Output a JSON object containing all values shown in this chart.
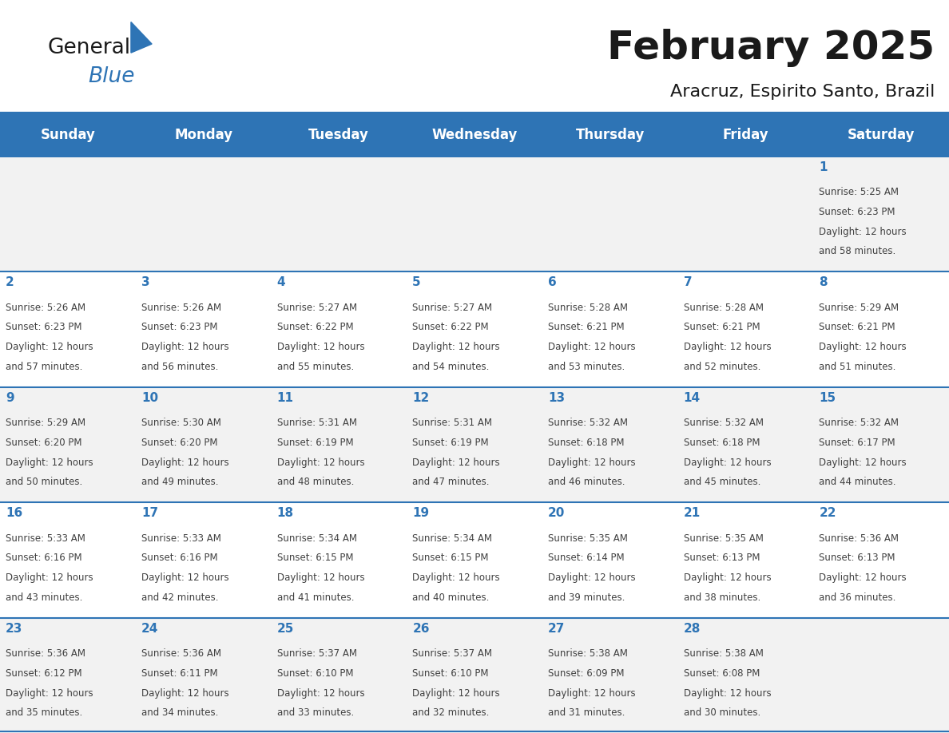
{
  "title": "February 2025",
  "subtitle": "Aracruz, Espirito Santo, Brazil",
  "header_bg": "#2E74B5",
  "header_text_color": "#FFFFFF",
  "cell_bg_even": "#F2F2F2",
  "cell_bg_odd": "#FFFFFF",
  "day_number_color": "#2E74B5",
  "info_text_color": "#404040",
  "days_of_week": [
    "Sunday",
    "Monday",
    "Tuesday",
    "Wednesday",
    "Thursday",
    "Friday",
    "Saturday"
  ],
  "calendar_data": [
    [
      null,
      null,
      null,
      null,
      null,
      null,
      1
    ],
    [
      2,
      3,
      4,
      5,
      6,
      7,
      8
    ],
    [
      9,
      10,
      11,
      12,
      13,
      14,
      15
    ],
    [
      16,
      17,
      18,
      19,
      20,
      21,
      22
    ],
    [
      23,
      24,
      25,
      26,
      27,
      28,
      null
    ]
  ],
  "sunrise_data": {
    "1": {
      "sunrise": "5:25 AM",
      "sunset": "6:23 PM",
      "daylight_hours": 12,
      "daylight_minutes": 58
    },
    "2": {
      "sunrise": "5:26 AM",
      "sunset": "6:23 PM",
      "daylight_hours": 12,
      "daylight_minutes": 57
    },
    "3": {
      "sunrise": "5:26 AM",
      "sunset": "6:23 PM",
      "daylight_hours": 12,
      "daylight_minutes": 56
    },
    "4": {
      "sunrise": "5:27 AM",
      "sunset": "6:22 PM",
      "daylight_hours": 12,
      "daylight_minutes": 55
    },
    "5": {
      "sunrise": "5:27 AM",
      "sunset": "6:22 PM",
      "daylight_hours": 12,
      "daylight_minutes": 54
    },
    "6": {
      "sunrise": "5:28 AM",
      "sunset": "6:21 PM",
      "daylight_hours": 12,
      "daylight_minutes": 53
    },
    "7": {
      "sunrise": "5:28 AM",
      "sunset": "6:21 PM",
      "daylight_hours": 12,
      "daylight_minutes": 52
    },
    "8": {
      "sunrise": "5:29 AM",
      "sunset": "6:21 PM",
      "daylight_hours": 12,
      "daylight_minutes": 51
    },
    "9": {
      "sunrise": "5:29 AM",
      "sunset": "6:20 PM",
      "daylight_hours": 12,
      "daylight_minutes": 50
    },
    "10": {
      "sunrise": "5:30 AM",
      "sunset": "6:20 PM",
      "daylight_hours": 12,
      "daylight_minutes": 49
    },
    "11": {
      "sunrise": "5:31 AM",
      "sunset": "6:19 PM",
      "daylight_hours": 12,
      "daylight_minutes": 48
    },
    "12": {
      "sunrise": "5:31 AM",
      "sunset": "6:19 PM",
      "daylight_hours": 12,
      "daylight_minutes": 47
    },
    "13": {
      "sunrise": "5:32 AM",
      "sunset": "6:18 PM",
      "daylight_hours": 12,
      "daylight_minutes": 46
    },
    "14": {
      "sunrise": "5:32 AM",
      "sunset": "6:18 PM",
      "daylight_hours": 12,
      "daylight_minutes": 45
    },
    "15": {
      "sunrise": "5:32 AM",
      "sunset": "6:17 PM",
      "daylight_hours": 12,
      "daylight_minutes": 44
    },
    "16": {
      "sunrise": "5:33 AM",
      "sunset": "6:16 PM",
      "daylight_hours": 12,
      "daylight_minutes": 43
    },
    "17": {
      "sunrise": "5:33 AM",
      "sunset": "6:16 PM",
      "daylight_hours": 12,
      "daylight_minutes": 42
    },
    "18": {
      "sunrise": "5:34 AM",
      "sunset": "6:15 PM",
      "daylight_hours": 12,
      "daylight_minutes": 41
    },
    "19": {
      "sunrise": "5:34 AM",
      "sunset": "6:15 PM",
      "daylight_hours": 12,
      "daylight_minutes": 40
    },
    "20": {
      "sunrise": "5:35 AM",
      "sunset": "6:14 PM",
      "daylight_hours": 12,
      "daylight_minutes": 39
    },
    "21": {
      "sunrise": "5:35 AM",
      "sunset": "6:13 PM",
      "daylight_hours": 12,
      "daylight_minutes": 38
    },
    "22": {
      "sunrise": "5:36 AM",
      "sunset": "6:13 PM",
      "daylight_hours": 12,
      "daylight_minutes": 36
    },
    "23": {
      "sunrise": "5:36 AM",
      "sunset": "6:12 PM",
      "daylight_hours": 12,
      "daylight_minutes": 35
    },
    "24": {
      "sunrise": "5:36 AM",
      "sunset": "6:11 PM",
      "daylight_hours": 12,
      "daylight_minutes": 34
    },
    "25": {
      "sunrise": "5:37 AM",
      "sunset": "6:10 PM",
      "daylight_hours": 12,
      "daylight_minutes": 33
    },
    "26": {
      "sunrise": "5:37 AM",
      "sunset": "6:10 PM",
      "daylight_hours": 12,
      "daylight_minutes": 32
    },
    "27": {
      "sunrise": "5:38 AM",
      "sunset": "6:09 PM",
      "daylight_hours": 12,
      "daylight_minutes": 31
    },
    "28": {
      "sunrise": "5:38 AM",
      "sunset": "6:08 PM",
      "daylight_hours": 12,
      "daylight_minutes": 30
    }
  },
  "logo_text_general": "General",
  "logo_text_blue": "Blue",
  "logo_color_general": "#1a1a1a",
  "logo_color_blue": "#2E74B5",
  "logo_triangle_color": "#2E74B5",
  "title_fontsize": 36,
  "subtitle_fontsize": 16,
  "header_fontsize": 12,
  "day_num_fontsize": 11,
  "info_fontsize": 8.5
}
